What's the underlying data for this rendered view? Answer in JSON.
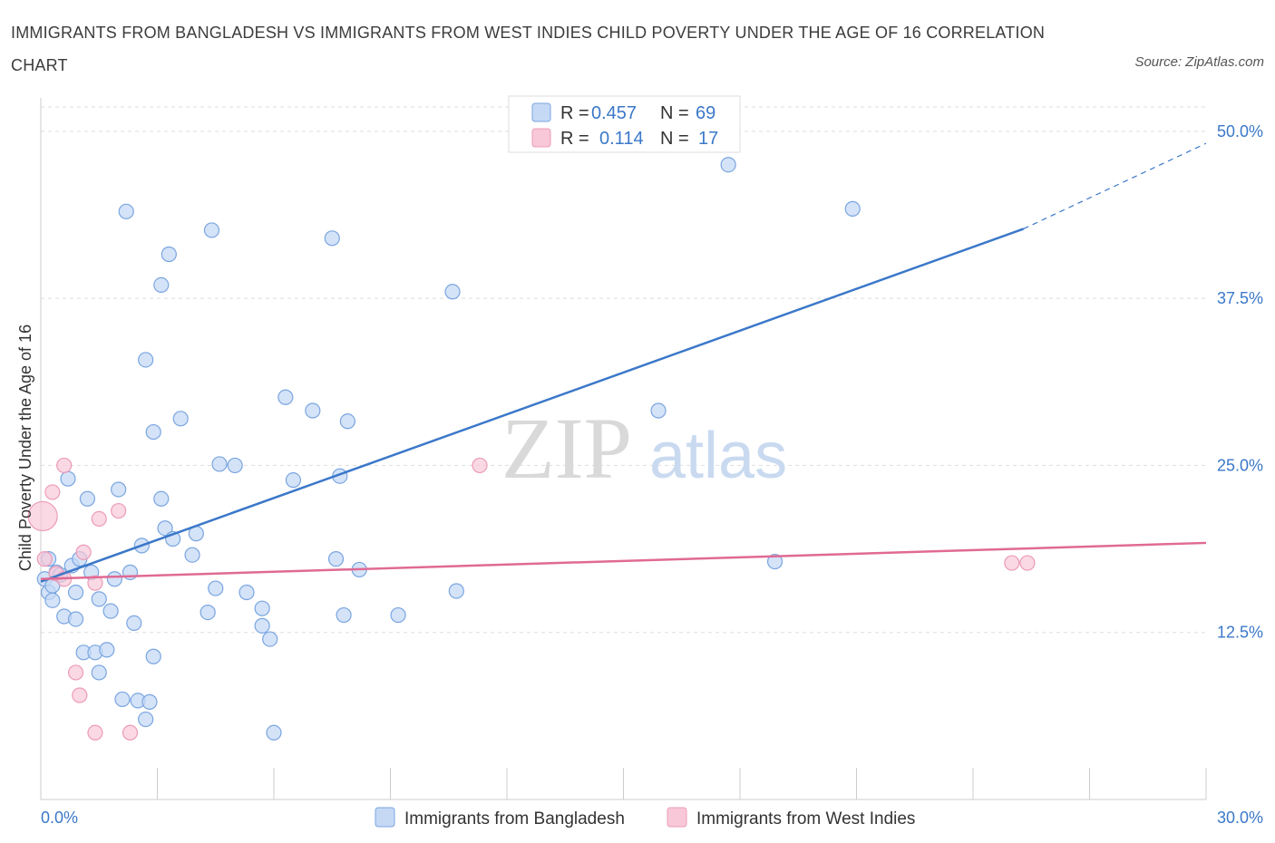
{
  "title": "IMMIGRANTS FROM BANGLADESH VS IMMIGRANTS FROM WEST INDIES CHILD POVERTY UNDER THE AGE OF 16 CORRELATION CHART",
  "source": "Source: ZipAtlas.com",
  "watermark": {
    "zip": "ZIP",
    "atlas": "atlas"
  },
  "colors": {
    "blue": "#3b78c9",
    "blue_fill": "#c5d9f5",
    "blue_stroke": "#7aa5e0",
    "pink": "#e06a93",
    "pink_fill": "#f8c8d8",
    "pink_stroke": "#ec9bb8",
    "grid": "#dddddd"
  },
  "legend_top": {
    "rows": [
      {
        "r_label": "R =",
        "r_value": "0.457",
        "n_label": "N =",
        "n_value": "69"
      },
      {
        "r_label": "R =",
        "r_value": "0.114",
        "n_label": "N =",
        "n_value": "17"
      }
    ]
  },
  "chart_data": {
    "type": "scatter",
    "title": "IMMIGRANTS FROM BANGLADESH VS IMMIGRANTS FROM WEST INDIES CHILD POVERTY UNDER THE AGE OF 16 CORRELATION CHART",
    "xlabel": "",
    "ylabel": "Child Poverty Under the Age of 16",
    "xlim": [
      0,
      30
    ],
    "ylim": [
      0,
      52.5
    ],
    "x_tick_labels": [
      "0.0%",
      "30.0%"
    ],
    "y_ticks": [
      12.5,
      25.0,
      37.5,
      50.0
    ],
    "y_tick_labels": [
      "12.5%",
      "25.0%",
      "37.5%",
      "50.0%"
    ],
    "grid": true,
    "legend": "top-center",
    "series": [
      {
        "name": "Immigrants from Bangladesh",
        "color": "#3b78c9",
        "R": 0.457,
        "N": 69,
        "trend": {
          "x0": 0.0,
          "y0": 16.3,
          "x1": 25.3,
          "y1": 42.7,
          "dashed_to_x": 30.0,
          "dashed_to_y": 49.1
        },
        "points": [
          [
            0.1,
            16.5
          ],
          [
            0.2,
            15.5
          ],
          [
            0.3,
            16.0
          ],
          [
            0.3,
            14.9
          ],
          [
            0.4,
            17.0
          ],
          [
            0.5,
            16.8
          ],
          [
            0.6,
            13.7
          ],
          [
            0.7,
            24.0
          ],
          [
            0.8,
            17.5
          ],
          [
            0.9,
            15.5
          ],
          [
            0.9,
            13.5
          ],
          [
            1.0,
            18.0
          ],
          [
            1.1,
            11.0
          ],
          [
            1.2,
            22.5
          ],
          [
            1.3,
            17.0
          ],
          [
            1.4,
            11.0
          ],
          [
            1.5,
            9.5
          ],
          [
            1.5,
            15.0
          ],
          [
            1.7,
            11.2
          ],
          [
            1.8,
            14.1
          ],
          [
            1.9,
            16.5
          ],
          [
            2.0,
            23.2
          ],
          [
            2.1,
            7.5
          ],
          [
            2.2,
            44.0
          ],
          [
            2.3,
            17.0
          ],
          [
            2.4,
            13.2
          ],
          [
            2.5,
            7.4
          ],
          [
            2.6,
            19.0
          ],
          [
            2.7,
            6.0
          ],
          [
            2.7,
            32.9
          ],
          [
            2.8,
            7.3
          ],
          [
            2.9,
            27.5
          ],
          [
            2.9,
            10.7
          ],
          [
            3.1,
            22.5
          ],
          [
            3.1,
            38.5
          ],
          [
            3.2,
            20.3
          ],
          [
            3.3,
            40.8
          ],
          [
            3.4,
            19.5
          ],
          [
            3.6,
            28.5
          ],
          [
            3.9,
            18.3
          ],
          [
            4.0,
            19.9
          ],
          [
            4.3,
            14.0
          ],
          [
            4.4,
            42.6
          ],
          [
            4.5,
            15.8
          ],
          [
            4.6,
            25.1
          ],
          [
            5.0,
            25.0
          ],
          [
            5.3,
            15.5
          ],
          [
            5.7,
            14.3
          ],
          [
            5.7,
            13.0
          ],
          [
            5.9,
            12.0
          ],
          [
            6.0,
            5.0
          ],
          [
            6.3,
            30.1
          ],
          [
            6.5,
            23.9
          ],
          [
            7.0,
            29.1
          ],
          [
            7.5,
            42.0
          ],
          [
            7.6,
            18.0
          ],
          [
            7.7,
            24.2
          ],
          [
            7.8,
            13.8
          ],
          [
            7.9,
            28.3
          ],
          [
            8.2,
            17.2
          ],
          [
            9.2,
            13.8
          ],
          [
            10.6,
            38.0
          ],
          [
            10.7,
            15.6
          ],
          [
            15.9,
            29.1
          ],
          [
            16.3,
            49.8
          ],
          [
            17.7,
            47.5
          ],
          [
            18.9,
            17.8
          ],
          [
            20.9,
            44.2
          ],
          [
            0.2,
            18.0
          ]
        ]
      },
      {
        "name": "Immigrants from West Indies",
        "color": "#e06a93",
        "R": 0.114,
        "N": 17,
        "trend": {
          "x0": 0.0,
          "y0": 16.5,
          "x1": 30.0,
          "y1": 19.2
        },
        "points": [
          [
            0.05,
            21.2
          ],
          [
            0.1,
            18.0
          ],
          [
            0.3,
            23.0
          ],
          [
            0.4,
            16.9
          ],
          [
            0.6,
            25.0
          ],
          [
            0.6,
            16.5
          ],
          [
            0.9,
            9.5
          ],
          [
            1.0,
            7.8
          ],
          [
            1.1,
            18.5
          ],
          [
            1.4,
            16.2
          ],
          [
            1.4,
            5.0
          ],
          [
            1.5,
            21.0
          ],
          [
            2.0,
            21.6
          ],
          [
            2.3,
            5.0
          ],
          [
            11.3,
            25.0
          ],
          [
            25.0,
            17.7
          ],
          [
            25.4,
            17.7
          ]
        ]
      }
    ]
  }
}
